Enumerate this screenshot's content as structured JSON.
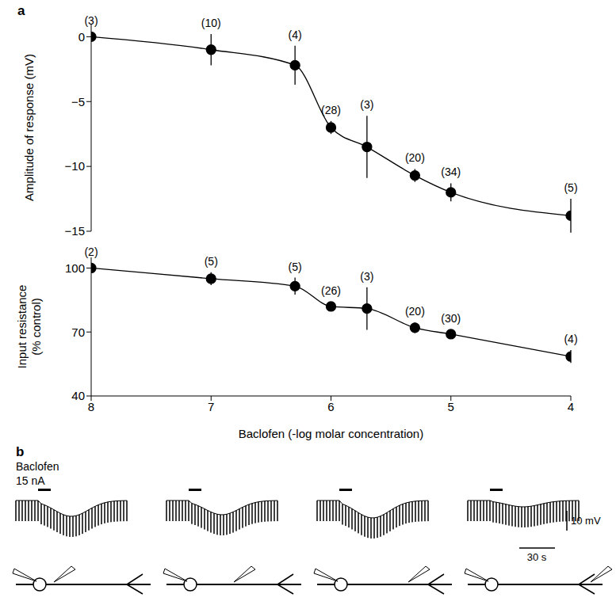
{
  "chart_data": [
    {
      "type": "line",
      "panel": "a",
      "y_label": "Amplitude of response (mV)",
      "x": [
        8,
        7,
        6.3,
        6,
        5.7,
        5.3,
        5,
        4
      ],
      "values": [
        0,
        -1,
        -2.2,
        -7,
        -8.5,
        -10.7,
        -12,
        -13.8
      ],
      "errors": [
        0,
        1.2,
        1.5,
        0.5,
        2.4,
        0.5,
        0.7,
        1.3
      ],
      "n_labels": [
        "(3)",
        "(10)",
        "(4)",
        "(28)",
        "(3)",
        "(20)",
        "(34)",
        "(5)"
      ],
      "xlim": [
        8,
        4
      ],
      "xticks": [
        8,
        7,
        6,
        5,
        4
      ],
      "ylim": [
        -15,
        1
      ],
      "yticks": [
        0,
        {
          "value": -5,
          "label": "−5"
        },
        {
          "value": -10,
          "label": "−10"
        },
        {
          "value": -15,
          "label": "−15"
        }
      ],
      "tick_labels": "y",
      "marker": "circle",
      "color": "#000000"
    },
    {
      "type": "line",
      "x_label": "Baclofen (-log molar concentration)",
      "y_label": "Input resistance (% control)",
      "x": [
        8,
        7,
        6.3,
        6,
        5.7,
        5.3,
        5,
        4
      ],
      "values": [
        100,
        95,
        91.5,
        82,
        81,
        72,
        69,
        58.5
      ],
      "errors": [
        0,
        3,
        4,
        2,
        10,
        2.5,
        2,
        3
      ],
      "n_labels": [
        "(2)",
        "(5)",
        "(5)",
        "(26)",
        "(3)",
        "(20)",
        "(30)",
        "(4)"
      ],
      "xlim": [
        8,
        4
      ],
      "xticks": [
        8,
        7,
        6,
        5,
        4
      ],
      "ylim": [
        40,
        105
      ],
      "yticks": [
        40,
        70,
        100
      ],
      "marker": "circle",
      "color": "#000000"
    }
  ],
  "panel_b": {
    "panel": "b",
    "drug": "Baclofen",
    "current": "15 nA",
    "scale_v": "10 mV",
    "scale_t": "30 s"
  }
}
